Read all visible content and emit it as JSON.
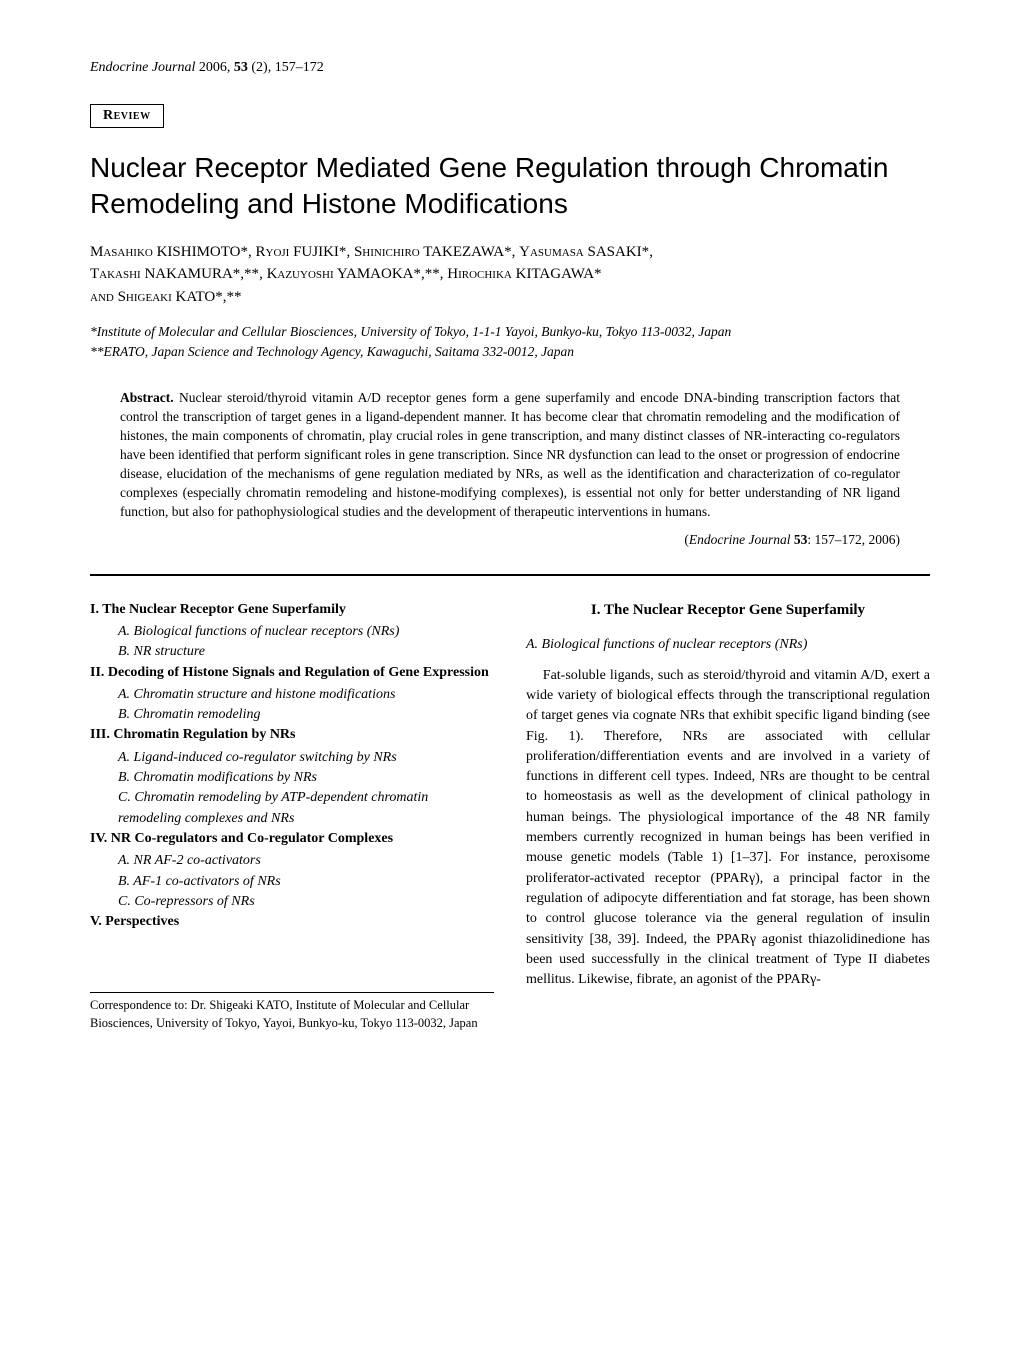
{
  "header": {
    "journal_name": "Endocrine Journal",
    "year": "2006",
    "volume": "53",
    "issue": "(2)",
    "pages": "157–172",
    "review_label": "Review"
  },
  "title": "Nuclear Receptor Mediated Gene Regulation through Chromatin Remodeling and Histone Modifications",
  "authors": {
    "a1_first": "Masahiko",
    "a1_last": "KISHIMOTO*",
    "a2_first": "Ryoji",
    "a2_last": "FUJIKI*",
    "a3_first": "Shinichiro",
    "a3_last": "TAKEZAWA*",
    "a4_first": "Yasumasa",
    "a4_last": "SASAKI*",
    "a5_first": "Takashi",
    "a5_last": "NAKAMURA*,**",
    "a6_first": "Kazuyoshi",
    "a6_last": "YAMAOKA*,**",
    "a7_first": "Hirochika",
    "a7_last": "KITAGAWA*",
    "and": "and",
    "a8_first": "Shigeaki",
    "a8_last": "KATO*,**"
  },
  "affiliations": {
    "aff1": "*Institute of Molecular and Cellular Biosciences, University of Tokyo, 1-1-1 Yayoi, Bunkyo-ku, Tokyo 113-0032, Japan",
    "aff2": "**ERATO, Japan Science and Technology Agency, Kawaguchi, Saitama 332-0012, Japan"
  },
  "abstract": {
    "label": "Abstract.",
    "text": " Nuclear steroid/thyroid vitamin A/D receptor genes form a gene superfamily and encode DNA-binding transcription factors that control the transcription of target genes in a ligand-dependent manner. It has become clear that chromatin remodeling and the modification of histones, the main components of chromatin, play crucial roles in gene transcription, and many distinct classes of NR-interacting co-regulators have been identified that perform significant roles in gene transcription. Since NR dysfunction can lead to the onset or progression of endocrine disease, elucidation of the mechanisms of gene regulation mediated by NRs, as well as the identification and characterization of co-regulator complexes (especially chromatin remodeling and histone-modifying complexes), is essential not only for better understanding of NR ligand function, but also for pathophysiological studies and the development of therapeutic interventions in humans."
  },
  "journal_citation": {
    "prefix": "(",
    "jname": "Endocrine Journal",
    "vol": " 53",
    "pages": ": 157–172, 2006)"
  },
  "outline": {
    "s1": "I. The Nuclear Receptor Gene Superfamily",
    "s1a": "A. Biological functions of nuclear receptors (NRs)",
    "s1b": "B. NR structure",
    "s2": "II. Decoding of Histone Signals and Regulation of Gene Expression",
    "s2a": "A. Chromatin structure and histone modifications",
    "s2b": "B. Chromatin remodeling",
    "s3": "III. Chromatin Regulation by NRs",
    "s3a": "A. Ligand-induced co-regulator switching by NRs",
    "s3b": "B. Chromatin modifications by NRs",
    "s3c": "C. Chromatin remodeling by ATP-dependent chromatin remodeling complexes and NRs",
    "s4": "IV. NR Co-regulators and Co-regulator Complexes",
    "s4a": "A. NR AF-2 co-activators",
    "s4b": "B. AF-1 co-activators of NRs",
    "s4c": "C. Co-repressors of NRs",
    "s5": "V. Perspectives"
  },
  "right_col": {
    "section_title": "I. The Nuclear Receptor Gene Superfamily",
    "subsection_title": "A. Biological functions of nuclear receptors (NRs)",
    "body": "Fat-soluble ligands, such as steroid/thyroid and vitamin A/D, exert a wide variety of biological effects through the transcriptional regulation of target genes via cognate NRs that exhibit specific ligand binding (see Fig. 1). Therefore, NRs are associated with cellular proliferation/differentiation events and are involved in a variety of functions in different cell types. Indeed, NRs are thought to be central to homeostasis as well as the development of clinical pathology in human beings. The physiological importance of the 48 NR family members currently recognized in human beings has been verified in mouse genetic models (Table 1) [1–37]. For instance, peroxisome proliferator-activated receptor (PPARγ), a principal factor in the regulation of adipocyte differentiation and fat storage, has been shown to control glucose tolerance via the general regulation of insulin sensitivity [38, 39]. Indeed, the PPARγ agonist thiazolidinedione has been used successfully in the clinical treatment of Type II diabetes mellitus. Likewise, fibrate, an agonist of the PPARγ-"
  },
  "correspondence": "Correspondence to: Dr. Shigeaki KATO, Institute of Molecular and Cellular Biosciences, University of Tokyo, Yayoi, Bunkyo-ku, Tokyo 113-0032, Japan"
}
